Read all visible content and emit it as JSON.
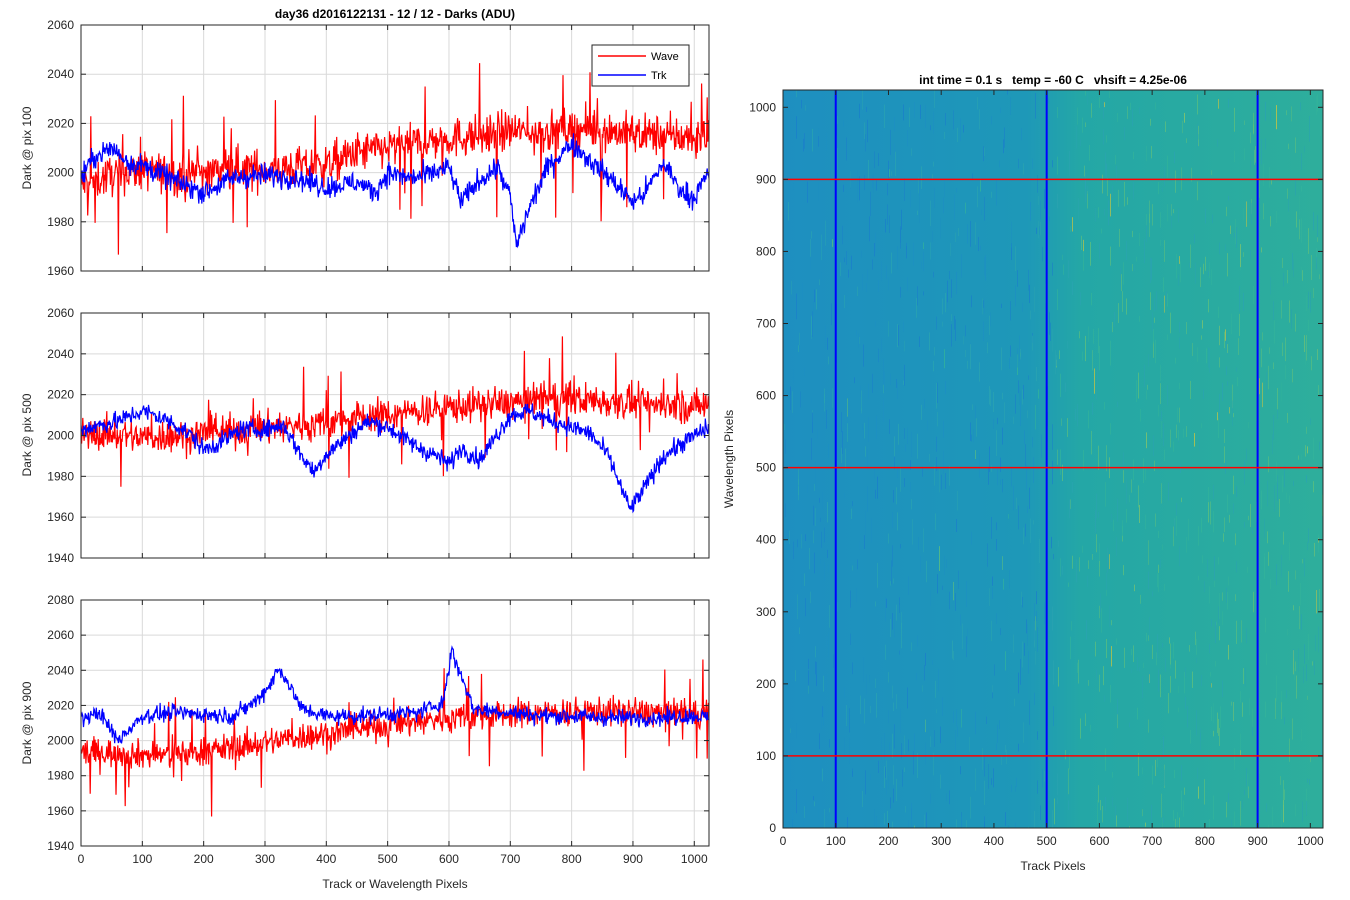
{
  "figure": {
    "left_title": "day36 d2016122131 - 12 / 12 - Darks (ADU)",
    "right_title": "int time = 0.1 s   temp = -60 C   vhsift = 4.25e-06"
  },
  "colors": {
    "wave": "#ff0000",
    "trk": "#0000ff",
    "heatmap_base": "#1f9fb0",
    "grid": "#d9d9d9"
  },
  "chart_data": [
    {
      "type": "line",
      "xlabel": "",
      "ylabel": "Dark @ pix 100",
      "xlim": [
        0,
        1024
      ],
      "ylim": [
        1960,
        2060
      ],
      "xticks": [
        0,
        100,
        200,
        300,
        400,
        500,
        600,
        700,
        800,
        900,
        1000
      ],
      "yticks": [
        1960,
        1980,
        2000,
        2020,
        2040,
        2060
      ],
      "grid": true,
      "legend": "top-right",
      "series": [
        {
          "name": "Wave",
          "color": "#ff0000",
          "x": [
            0,
            50,
            100,
            150,
            200,
            250,
            300,
            350,
            400,
            450,
            500,
            550,
            600,
            650,
            700,
            750,
            800,
            850,
            900,
            950,
            1000,
            1024
          ],
          "y": [
            1995,
            1999,
            2001,
            1999,
            2000,
            2002,
            2001,
            2002,
            2003,
            2008,
            2010,
            2012,
            2014,
            2015,
            2017,
            2016,
            2018,
            2017,
            2016,
            2015,
            2014,
            2015
          ]
        },
        {
          "name": "Trk",
          "color": "#0000ff",
          "x": [
            0,
            20,
            50,
            80,
            100,
            150,
            200,
            250,
            300,
            350,
            400,
            450,
            480,
            500,
            530,
            550,
            600,
            620,
            650,
            680,
            700,
            710,
            730,
            760,
            800,
            830,
            870,
            900,
            920,
            950,
            980,
            1000,
            1024
          ],
          "y": [
            1998,
            2006,
            2010,
            2004,
            2003,
            1997,
            1992,
            1998,
            1999,
            1998,
            1994,
            1996,
            1992,
            2000,
            1998,
            1998,
            2002,
            1988,
            1997,
            2002,
            1990,
            1970,
            1985,
            2002,
            2012,
            2005,
            1996,
            1988,
            1992,
            2004,
            1992,
            1990,
            2000
          ]
        }
      ]
    },
    {
      "type": "line",
      "xlabel": "",
      "ylabel": "Dark @ pix 500",
      "xlim": [
        0,
        1024
      ],
      "ylim": [
        1940,
        2060
      ],
      "xticks": [
        0,
        100,
        200,
        300,
        400,
        500,
        600,
        700,
        800,
        900,
        1000
      ],
      "yticks": [
        1940,
        1960,
        1980,
        2000,
        2020,
        2040,
        2060
      ],
      "grid": true,
      "series": [
        {
          "name": "Wave",
          "color": "#ff0000",
          "x": [
            0,
            50,
            100,
            150,
            200,
            250,
            300,
            350,
            400,
            450,
            500,
            550,
            600,
            650,
            700,
            750,
            800,
            850,
            900,
            950,
            1000,
            1024
          ],
          "y": [
            2000,
            2001,
            1999,
            2000,
            2001,
            2002,
            2004,
            2005,
            2006,
            2009,
            2010,
            2012,
            2014,
            2015,
            2016,
            2018,
            2018,
            2017,
            2016,
            2015,
            2014,
            2016
          ]
        },
        {
          "name": "Trk",
          "color": "#0000ff",
          "x": [
            0,
            30,
            60,
            100,
            120,
            150,
            180,
            200,
            230,
            260,
            300,
            330,
            360,
            380,
            400,
            450,
            470,
            500,
            550,
            580,
            600,
            620,
            650,
            700,
            730,
            760,
            800,
            830,
            860,
            880,
            895,
            910,
            950,
            1000,
            1024
          ],
          "y": [
            2003,
            2005,
            2007,
            2012,
            2010,
            2006,
            2000,
            1993,
            1997,
            2003,
            2003,
            2005,
            1990,
            1982,
            1991,
            2003,
            2007,
            2004,
            1994,
            1990,
            1986,
            1994,
            1988,
            2010,
            2012,
            2008,
            2004,
            2001,
            1990,
            1975,
            1964,
            1970,
            1990,
            2000,
            2004
          ]
        }
      ]
    },
    {
      "type": "line",
      "xlabel": "Track or Wavelength Pixels",
      "ylabel": "Dark @ pix 900",
      "xlim": [
        0,
        1024
      ],
      "ylim": [
        1940,
        2080
      ],
      "xticks": [
        0,
        100,
        200,
        300,
        400,
        500,
        600,
        700,
        800,
        900,
        1000
      ],
      "yticks": [
        1940,
        1960,
        1980,
        2000,
        2020,
        2040,
        2060,
        2080
      ],
      "grid": true,
      "series": [
        {
          "name": "Wave",
          "color": "#ff0000",
          "x": [
            0,
            50,
            100,
            150,
            200,
            250,
            300,
            350,
            400,
            450,
            500,
            550,
            600,
            650,
            700,
            750,
            800,
            850,
            900,
            950,
            1000,
            1024
          ],
          "y": [
            1994,
            1993,
            1992,
            1992,
            1994,
            1996,
            1999,
            2002,
            2004,
            2006,
            2009,
            2011,
            2013,
            2014,
            2015,
            2016,
            2016,
            2017,
            2016,
            2016,
            2015,
            2016
          ]
        },
        {
          "name": "Trk",
          "color": "#0000ff",
          "x": [
            0,
            30,
            60,
            100,
            150,
            200,
            250,
            290,
            310,
            320,
            330,
            345,
            360,
            400,
            450,
            500,
            550,
            590,
            600,
            605,
            610,
            625,
            640,
            700,
            750,
            800,
            850,
            900,
            950,
            1000,
            1024
          ],
          "y": [
            2012,
            2016,
            2000,
            2014,
            2016,
            2015,
            2014,
            2024,
            2033,
            2040,
            2038,
            2028,
            2018,
            2014,
            2014,
            2015,
            2016,
            2022,
            2040,
            2054,
            2045,
            2033,
            2018,
            2016,
            2014,
            2014,
            2013,
            2013,
            2013,
            2014,
            2013
          ]
        }
      ]
    },
    {
      "type": "heatmap",
      "title": "int time = 0.1 s   temp = -60 C   vhsift = 4.25e-06",
      "xlabel": "Track Pixels",
      "ylabel": "Wavelength Pixels",
      "xlim": [
        0,
        1024
      ],
      "ylim": [
        0,
        1024
      ],
      "xticks": [
        0,
        100,
        200,
        300,
        400,
        500,
        600,
        700,
        800,
        900,
        1000
      ],
      "yticks": [
        0,
        100,
        200,
        300,
        400,
        500,
        600,
        700,
        800,
        900,
        1000
      ],
      "vertical_lines": [
        100,
        500,
        900
      ],
      "horizontal_lines": [
        100,
        500,
        900
      ],
      "vertical_line_color": "#0000ff",
      "horizontal_line_color": "#ff0000"
    }
  ]
}
